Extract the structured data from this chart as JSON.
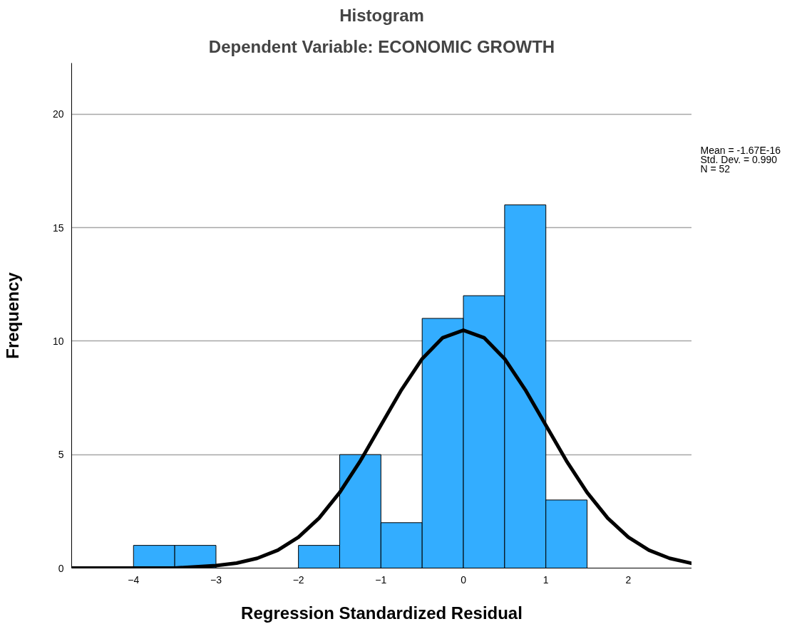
{
  "chart_data": {
    "type": "histogram",
    "title": "Histogram",
    "subtitle": "Dependent Variable: ECONOMIC GROWTH",
    "xlabel": "Regression Standardized Residual",
    "ylabel": "Frequency",
    "bins": [
      -4,
      -3.5,
      -3,
      -2.5,
      -2,
      -1.5,
      -1,
      -0.5,
      0,
      0.5,
      1,
      1.5
    ],
    "values": [
      1,
      1,
      0,
      0,
      1,
      5,
      2,
      11,
      12,
      16,
      3
    ],
    "color": "#33adff",
    "series": [
      {
        "type": "line",
        "color": "#000000",
        "x": [
          -4.75,
          -4,
          -3.5,
          -3,
          -2.75,
          -2.5,
          -2.25,
          -2,
          -1.75,
          -1.5,
          -1.25,
          -1,
          -0.75,
          -0.5,
          -0.25,
          0,
          0.25,
          0.5,
          0.75,
          1,
          1.25,
          1.5,
          1.75,
          2,
          2.25,
          2.5,
          2.77
        ],
        "values": [
          0,
          0,
          0,
          0.11,
          0.22,
          0.43,
          0.79,
          1.36,
          2.2,
          3.33,
          4.72,
          6.29,
          7.86,
          9.22,
          10.15,
          10.48,
          10.15,
          9.22,
          7.86,
          6.29,
          4.72,
          3.33,
          2.2,
          1.36,
          0.79,
          0.43,
          0.21
        ]
      }
    ],
    "xlim": [
      -4.75,
      2.77
    ],
    "ylim": [
      0,
      22.25
    ],
    "xticks": [
      -4,
      -3,
      -2,
      -1,
      0,
      1,
      2
    ],
    "yticks": [
      0,
      5,
      10,
      15,
      20
    ],
    "grid": "y",
    "annotations": [
      "Mean = -1.67E-16",
      "Std. Dev. = 0.990",
      "N = 52"
    ]
  }
}
